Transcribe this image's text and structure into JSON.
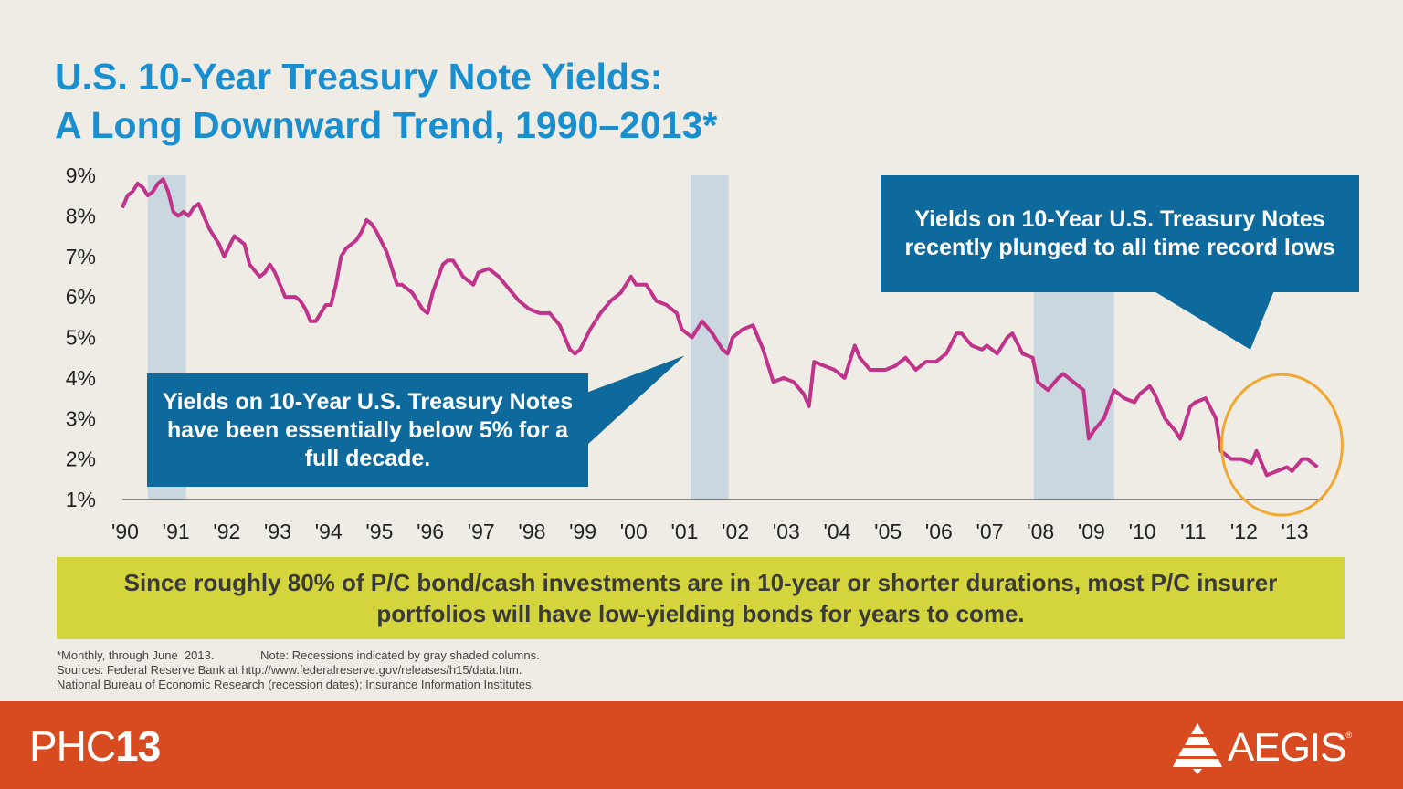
{
  "title_line1": "U.S. 10-Year Treasury Note Yields:",
  "title_line2": "A Long Downward Trend, 1990–2013*",
  "callout_left": "Yields on 10-Year U.S. Treasury Notes have been essentially  below 5% for a full decade.",
  "callout_right": "Yields on 10-Year U.S. Treasury Notes recently plunged to all time record lows",
  "banner": "Since roughly 80% of P/C bond/cash investments are in 10-year or shorter durations, most P/C insurer portfolios will have low-yielding bonds for years to come.",
  "footnote_line1": "*Monthly, through June  2013.              Note: Recessions indicated by gray shaded columns.",
  "footnote_line2": "Sources: Federal Reserve Bank at http://www.federalreserve.gov/releases/h15/data.htm.",
  "footnote_line3": "National Bureau of Economic Research (recession dates); Insurance Information Institutes.",
  "footer_brand_light": "PHC",
  "footer_brand_bold": "13",
  "footer_logo_text": "AEGIS",
  "footer_logo_mark": "®",
  "colors": {
    "title": "#1a8fd0",
    "line": "#c0338a",
    "recession": "#cbd7df",
    "callout": "#0e6a9c",
    "banner": "#d4d43c",
    "footer": "#d84a1f",
    "highlight_circle": "#f0a830"
  },
  "chart_data": {
    "type": "line",
    "x_tick_labels": [
      "'90",
      "'91",
      "'92",
      "'93",
      "'94",
      "'95",
      "'96",
      "'97",
      "'98",
      "'99",
      "'00",
      "'01",
      "'02",
      "'03",
      "'04",
      "'05",
      "'06",
      "'07",
      "'08",
      "'09",
      "'10",
      "'11",
      "'12",
      "'13"
    ],
    "y_tick_labels": [
      "1%",
      "2%",
      "3%",
      "4%",
      "5%",
      "6%",
      "7%",
      "8%",
      "9%"
    ],
    "ylim": [
      1,
      9
    ],
    "xlim": [
      1990.0,
      2013.6
    ],
    "grid": false,
    "recessions": [
      [
        1990.5,
        1991.25
      ],
      [
        2001.17,
        2001.92
      ],
      [
        2007.92,
        2009.5
      ]
    ],
    "highlight_circle": {
      "center": [
        2012.8,
        2.35
      ],
      "label": ""
    },
    "series": [
      {
        "x": [
          1990.0,
          1990.1,
          1990.2,
          1990.3,
          1990.4,
          1990.5,
          1990.6,
          1990.7,
          1990.8,
          1990.9,
          1991.0,
          1991.1,
          1991.2,
          1991.3,
          1991.4,
          1991.5,
          1991.6,
          1991.7,
          1991.8,
          1991.9,
          1992.0,
          1992.2,
          1992.4,
          1992.5,
          1992.7,
          1992.8,
          1992.9,
          1993.0,
          1993.2,
          1993.4,
          1993.5,
          1993.6,
          1993.7,
          1993.8,
          1993.9,
          1994.0,
          1994.1,
          1994.2,
          1994.3,
          1994.4,
          1994.5,
          1994.6,
          1994.7,
          1994.8,
          1994.9,
          1995.0,
          1995.2,
          1995.4,
          1995.5,
          1995.7,
          1995.9,
          1996.0,
          1996.1,
          1996.3,
          1996.4,
          1996.5,
          1996.7,
          1996.9,
          1997.0,
          1997.2,
          1997.4,
          1997.6,
          1997.8,
          1998.0,
          1998.2,
          1998.4,
          1998.6,
          1998.8,
          1998.9,
          1999.0,
          1999.2,
          1999.4,
          1999.6,
          1999.8,
          2000.0,
          2000.1,
          2000.3,
          2000.5,
          2000.7,
          2000.9,
          2001.0,
          2001.2,
          2001.4,
          2001.6,
          2001.8,
          2001.9,
          2002.0,
          2002.2,
          2002.4,
          2002.6,
          2002.8,
          2003.0,
          2003.2,
          2003.4,
          2003.5,
          2003.6,
          2003.8,
          2004.0,
          2004.2,
          2004.4,
          2004.5,
          2004.7,
          2004.9,
          2005.0,
          2005.2,
          2005.4,
          2005.6,
          2005.8,
          2006.0,
          2006.2,
          2006.4,
          2006.5,
          2006.7,
          2006.9,
          2007.0,
          2007.2,
          2007.4,
          2007.5,
          2007.7,
          2007.9,
          2008.0,
          2008.2,
          2008.4,
          2008.5,
          2008.7,
          2008.9,
          2009.0,
          2009.1,
          2009.3,
          2009.5,
          2009.7,
          2009.9,
          2010.0,
          2010.2,
          2010.3,
          2010.5,
          2010.7,
          2010.8,
          2011.0,
          2011.1,
          2011.3,
          2011.5,
          2011.6,
          2011.8,
          2012.0,
          2012.2,
          2012.3,
          2012.5,
          2012.7,
          2012.9,
          2013.0,
          2013.2,
          2013.3,
          2013.5
        ],
        "values": [
          8.2,
          8.5,
          8.6,
          8.8,
          8.7,
          8.5,
          8.6,
          8.8,
          8.9,
          8.6,
          8.1,
          8.0,
          8.1,
          8.0,
          8.2,
          8.3,
          8.0,
          7.7,
          7.5,
          7.3,
          7.0,
          7.5,
          7.3,
          6.8,
          6.5,
          6.6,
          6.8,
          6.6,
          6.0,
          6.0,
          5.9,
          5.7,
          5.4,
          5.4,
          5.6,
          5.8,
          5.8,
          6.3,
          7.0,
          7.2,
          7.3,
          7.4,
          7.6,
          7.9,
          7.8,
          7.6,
          7.1,
          6.3,
          6.3,
          6.1,
          5.7,
          5.6,
          6.1,
          6.8,
          6.9,
          6.9,
          6.5,
          6.3,
          6.6,
          6.7,
          6.5,
          6.2,
          5.9,
          5.7,
          5.6,
          5.6,
          5.3,
          4.7,
          4.6,
          4.7,
          5.2,
          5.6,
          5.9,
          6.1,
          6.5,
          6.3,
          6.3,
          5.9,
          5.8,
          5.6,
          5.2,
          5.0,
          5.4,
          5.1,
          4.7,
          4.6,
          5.0,
          5.2,
          5.3,
          4.7,
          3.9,
          4.0,
          3.9,
          3.6,
          3.3,
          4.4,
          4.3,
          4.2,
          4.0,
          4.8,
          4.5,
          4.2,
          4.2,
          4.2,
          4.3,
          4.5,
          4.2,
          4.4,
          4.4,
          4.6,
          5.1,
          5.1,
          4.8,
          4.7,
          4.8,
          4.6,
          5.0,
          5.1,
          4.6,
          4.5,
          3.9,
          3.7,
          4.0,
          4.1,
          3.9,
          3.7,
          2.5,
          2.7,
          3.0,
          3.7,
          3.5,
          3.4,
          3.6,
          3.8,
          3.6,
          3.0,
          2.7,
          2.5,
          3.3,
          3.4,
          3.5,
          3.0,
          2.2,
          2.0,
          2.0,
          1.9,
          2.2,
          1.6,
          1.7,
          1.8,
          1.7,
          2.0,
          2.0,
          1.8
        ]
      }
    ]
  }
}
